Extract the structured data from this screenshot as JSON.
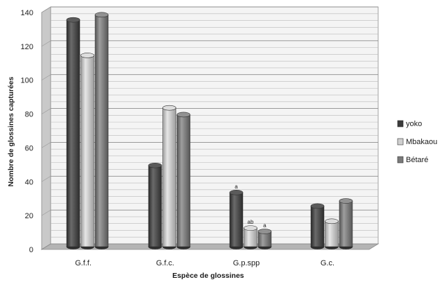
{
  "chart_data": {
    "type": "bar",
    "xlabel": "Espèce de glossines",
    "ylabel": "Nombre de glossines capturées",
    "ylim": [
      0,
      140
    ],
    "yticks": [
      0,
      20,
      40,
      60,
      80,
      100,
      120,
      140
    ],
    "categories": [
      "G.f.f.",
      "G.f.c.",
      "G.p.spp",
      "G.c."
    ],
    "series": [
      {
        "name": "yoko",
        "values": [
          134,
          48,
          32,
          24
        ],
        "color": "#4d4d4d"
      },
      {
        "name": "Mbakaou",
        "values": [
          113,
          82,
          11,
          15
        ],
        "color": "#c4c4c4"
      },
      {
        "name": "Bétaré",
        "values": [
          137,
          78,
          9,
          27
        ],
        "color": "#7e7e7e"
      }
    ],
    "annotations": [
      {
        "category": "G.p.spp",
        "series": "yoko",
        "text": "a"
      },
      {
        "category": "G.p.spp",
        "series": "Mbakaou",
        "text": "ab"
      },
      {
        "category": "G.p.spp",
        "series": "Bétaré",
        "text": "a"
      }
    ],
    "legend": "right",
    "grid": true,
    "style": "3d-cylinder"
  }
}
